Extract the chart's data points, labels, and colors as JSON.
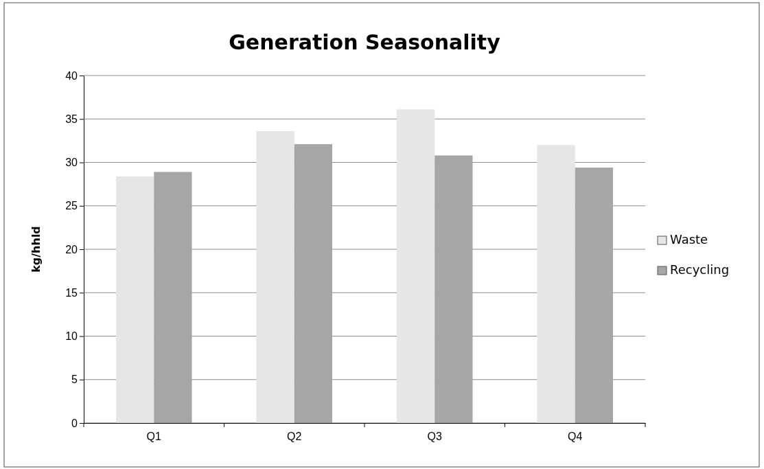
{
  "chart_data": {
    "type": "bar",
    "title": "Generation Seasonality",
    "ylabel": "kg/hhld",
    "categories": [
      "Q1",
      "Q2",
      "Q3",
      "Q4"
    ],
    "series": [
      {
        "name": "Waste",
        "color": "#e6e6e6",
        "values": [
          28.4,
          33.6,
          36.1,
          32.0
        ]
      },
      {
        "name": "Recycling",
        "color": "#a6a6a6",
        "values": [
          28.9,
          32.1,
          30.8,
          29.4
        ]
      }
    ],
    "ylim": [
      0,
      40
    ],
    "yticks": [
      0,
      5,
      10,
      15,
      20,
      25,
      30,
      35,
      40
    ],
    "grid": "y",
    "legend": "right"
  }
}
